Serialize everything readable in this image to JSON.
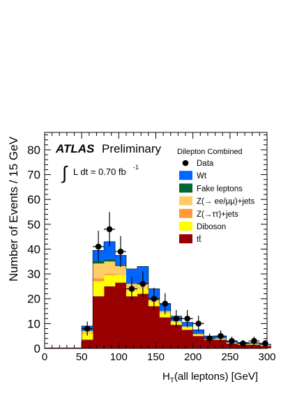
{
  "chart_data": {
    "type": "bar",
    "stacked": true,
    "bin_width": 15,
    "x_bins_lower_edges": [
      50,
      65,
      80,
      95,
      110,
      125,
      140,
      155,
      170,
      185,
      200,
      215,
      230,
      245,
      260,
      275,
      290
    ],
    "xlabel": "H",
    "xlabel_sub": "T",
    "xlabel_rest": "(all leptons) [GeV]",
    "ylabel": "Number of Events / 15 GeV",
    "xlim": [
      0,
      300
    ],
    "ylim": [
      0,
      87
    ],
    "x_ticks": [
      0,
      50,
      100,
      150,
      200,
      250,
      300
    ],
    "y_ticks": [
      0,
      10,
      20,
      30,
      40,
      50,
      60,
      70,
      80
    ],
    "atlas_label": "ATLAS",
    "atlas_sublabel": "Preliminary",
    "lumi_integral": "∫",
    "lumi_text": "L dt = 0.70 fb",
    "lumi_sup": "-1",
    "legend_title": "Dilepton Combined",
    "legend_position": "top-right",
    "series": [
      {
        "name": "tt̄",
        "color": "#990000",
        "values": [
          3.5,
          21,
          25,
          26.5,
          21,
          22,
          17,
          12.5,
          9.5,
          7.5,
          5,
          3.5,
          3.5,
          2,
          1.5,
          1.5,
          1
        ]
      },
      {
        "name": "Diboson",
        "color": "#ffff00",
        "values": [
          2.5,
          6,
          4.5,
          3,
          2,
          2,
          1.5,
          1.5,
          1,
          0.8,
          0.5,
          0.3,
          0.3,
          0.2,
          0.2,
          0.2,
          0.2
        ]
      },
      {
        "name": "Z(→ττ)+jets",
        "color": "#ff9933",
        "values": [
          0.3,
          1.2,
          0.5,
          0.2,
          0,
          0,
          0,
          0,
          0,
          0,
          0,
          0,
          0,
          0,
          0,
          0,
          0
        ]
      },
      {
        "name": "Z(→ ee/μμ)+jets",
        "color": "#ffcc66",
        "values": [
          0.7,
          6,
          5,
          3.5,
          3,
          2,
          1,
          1,
          0.5,
          0.5,
          0.3,
          0.3,
          0.2,
          0.1,
          0.1,
          0.1,
          0.1
        ]
      },
      {
        "name": "Fake leptons",
        "color": "#006633",
        "values": [
          0.2,
          1,
          1,
          0.5,
          0.3,
          0.3,
          0.2,
          0.2,
          0.1,
          0.1,
          0.1,
          0.1,
          0.1,
          0.1,
          0.1,
          0.1,
          0.1
        ]
      },
      {
        "name": "Wt",
        "color": "#0066ff",
        "values": [
          1.8,
          4.3,
          7,
          3.8,
          5.7,
          6.7,
          4.3,
          2.8,
          1.9,
          1.6,
          1.6,
          0.8,
          0.9,
          0.6,
          0.5,
          0.4,
          0.3
        ]
      }
    ],
    "data_series": {
      "name": "Data",
      "x": [
        57.5,
        72.5,
        87.5,
        102.5,
        117.5,
        132.5,
        147.5,
        162.5,
        177.5,
        192.5,
        207.5,
        222.5,
        237.5,
        252.5,
        267.5,
        282.5,
        297.5
      ],
      "y": [
        8,
        41,
        48,
        39,
        24,
        26,
        20,
        18,
        12,
        12,
        10,
        4,
        5,
        3,
        2,
        3,
        2
      ],
      "xerr": 7.5
    }
  }
}
